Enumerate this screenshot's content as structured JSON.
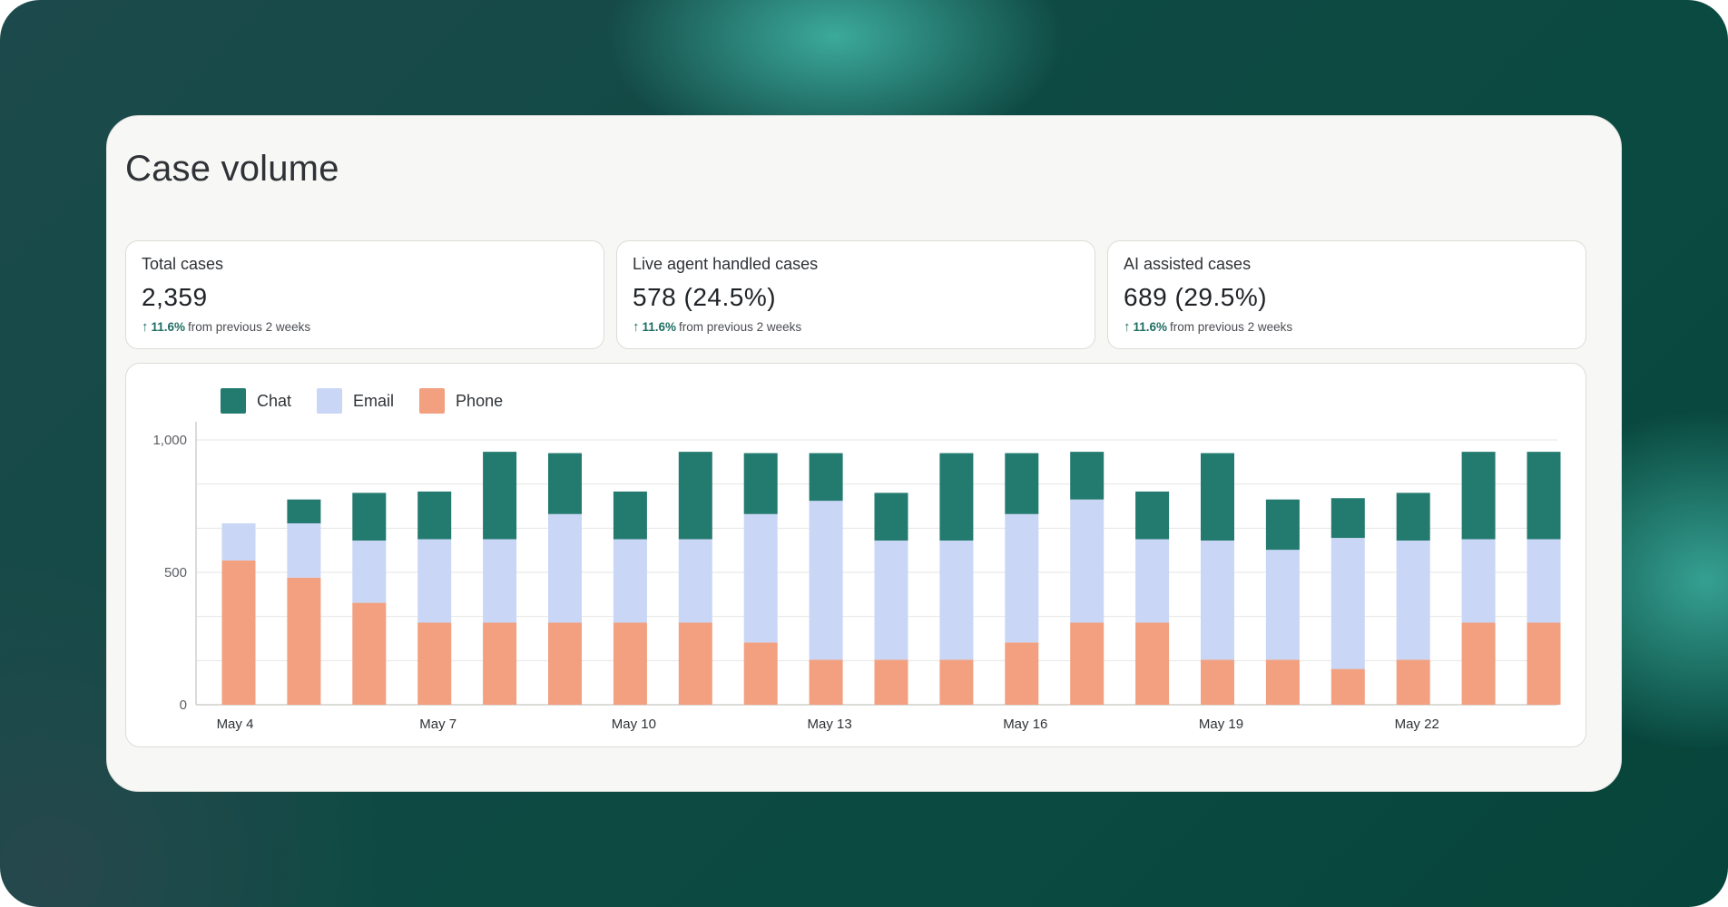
{
  "page": {
    "title": "Case volume"
  },
  "stats": [
    {
      "label": "Total cases",
      "value": "2,359",
      "delta_pct": "11.6%",
      "delta_text": "from previous 2 weeks"
    },
    {
      "label": "Live agent handled cases",
      "value": "578 (24.5%)",
      "delta_pct": "11.6%",
      "delta_text": "from previous 2 weeks"
    },
    {
      "label": "AI assisted cases",
      "value": "689 (29.5%)",
      "delta_pct": "11.6%",
      "delta_text": "from previous 2 weeks"
    }
  ],
  "colors": {
    "chat": "#237a6f",
    "email": "#c9d6f6",
    "phone": "#f2a080",
    "accent": "#1f6e63"
  },
  "chart_data": {
    "type": "bar",
    "stacked": true,
    "title": "",
    "xlabel": "",
    "ylabel": "",
    "ylim": [
      0,
      1000
    ],
    "yticks": [
      0,
      500,
      1000
    ],
    "ytick_labels": [
      "0",
      "500",
      "1,000"
    ],
    "grid": true,
    "legend": "top-left",
    "categories": [
      "May 4",
      "May 5",
      "May 6",
      "May 7",
      "May 8",
      "May 9",
      "May 10",
      "May 11",
      "May 12",
      "May 13",
      "May 14",
      "May 15",
      "May 16",
      "May 17",
      "May 18",
      "May 19",
      "May 20",
      "May 21",
      "May 22",
      "May 23",
      "May 24"
    ],
    "xtick_labels": [
      "May 4",
      "",
      "",
      "May 7",
      "",
      "",
      "May 10",
      "",
      "",
      "May 13",
      "",
      "",
      "May 16",
      "",
      "",
      "May 19",
      "",
      "",
      "May 22",
      "",
      ""
    ],
    "series": [
      {
        "name": "Phone",
        "color_key": "phone",
        "values": [
          545,
          480,
          385,
          310,
          310,
          310,
          310,
          310,
          235,
          170,
          170,
          170,
          235,
          310,
          310,
          170,
          170,
          135,
          170,
          310,
          310
        ]
      },
      {
        "name": "Email",
        "color_key": "email",
        "values": [
          140,
          205,
          235,
          315,
          315,
          410,
          315,
          315,
          485,
          600,
          450,
          450,
          485,
          465,
          315,
          450,
          415,
          495,
          450,
          315,
          315
        ]
      },
      {
        "name": "Chat",
        "color_key": "chat",
        "values": [
          0,
          90,
          180,
          180,
          330,
          230,
          180,
          330,
          230,
          180,
          180,
          330,
          230,
          180,
          180,
          330,
          190,
          150,
          180,
          330,
          330
        ]
      }
    ],
    "legend_order": [
      "Chat",
      "Email",
      "Phone"
    ]
  }
}
